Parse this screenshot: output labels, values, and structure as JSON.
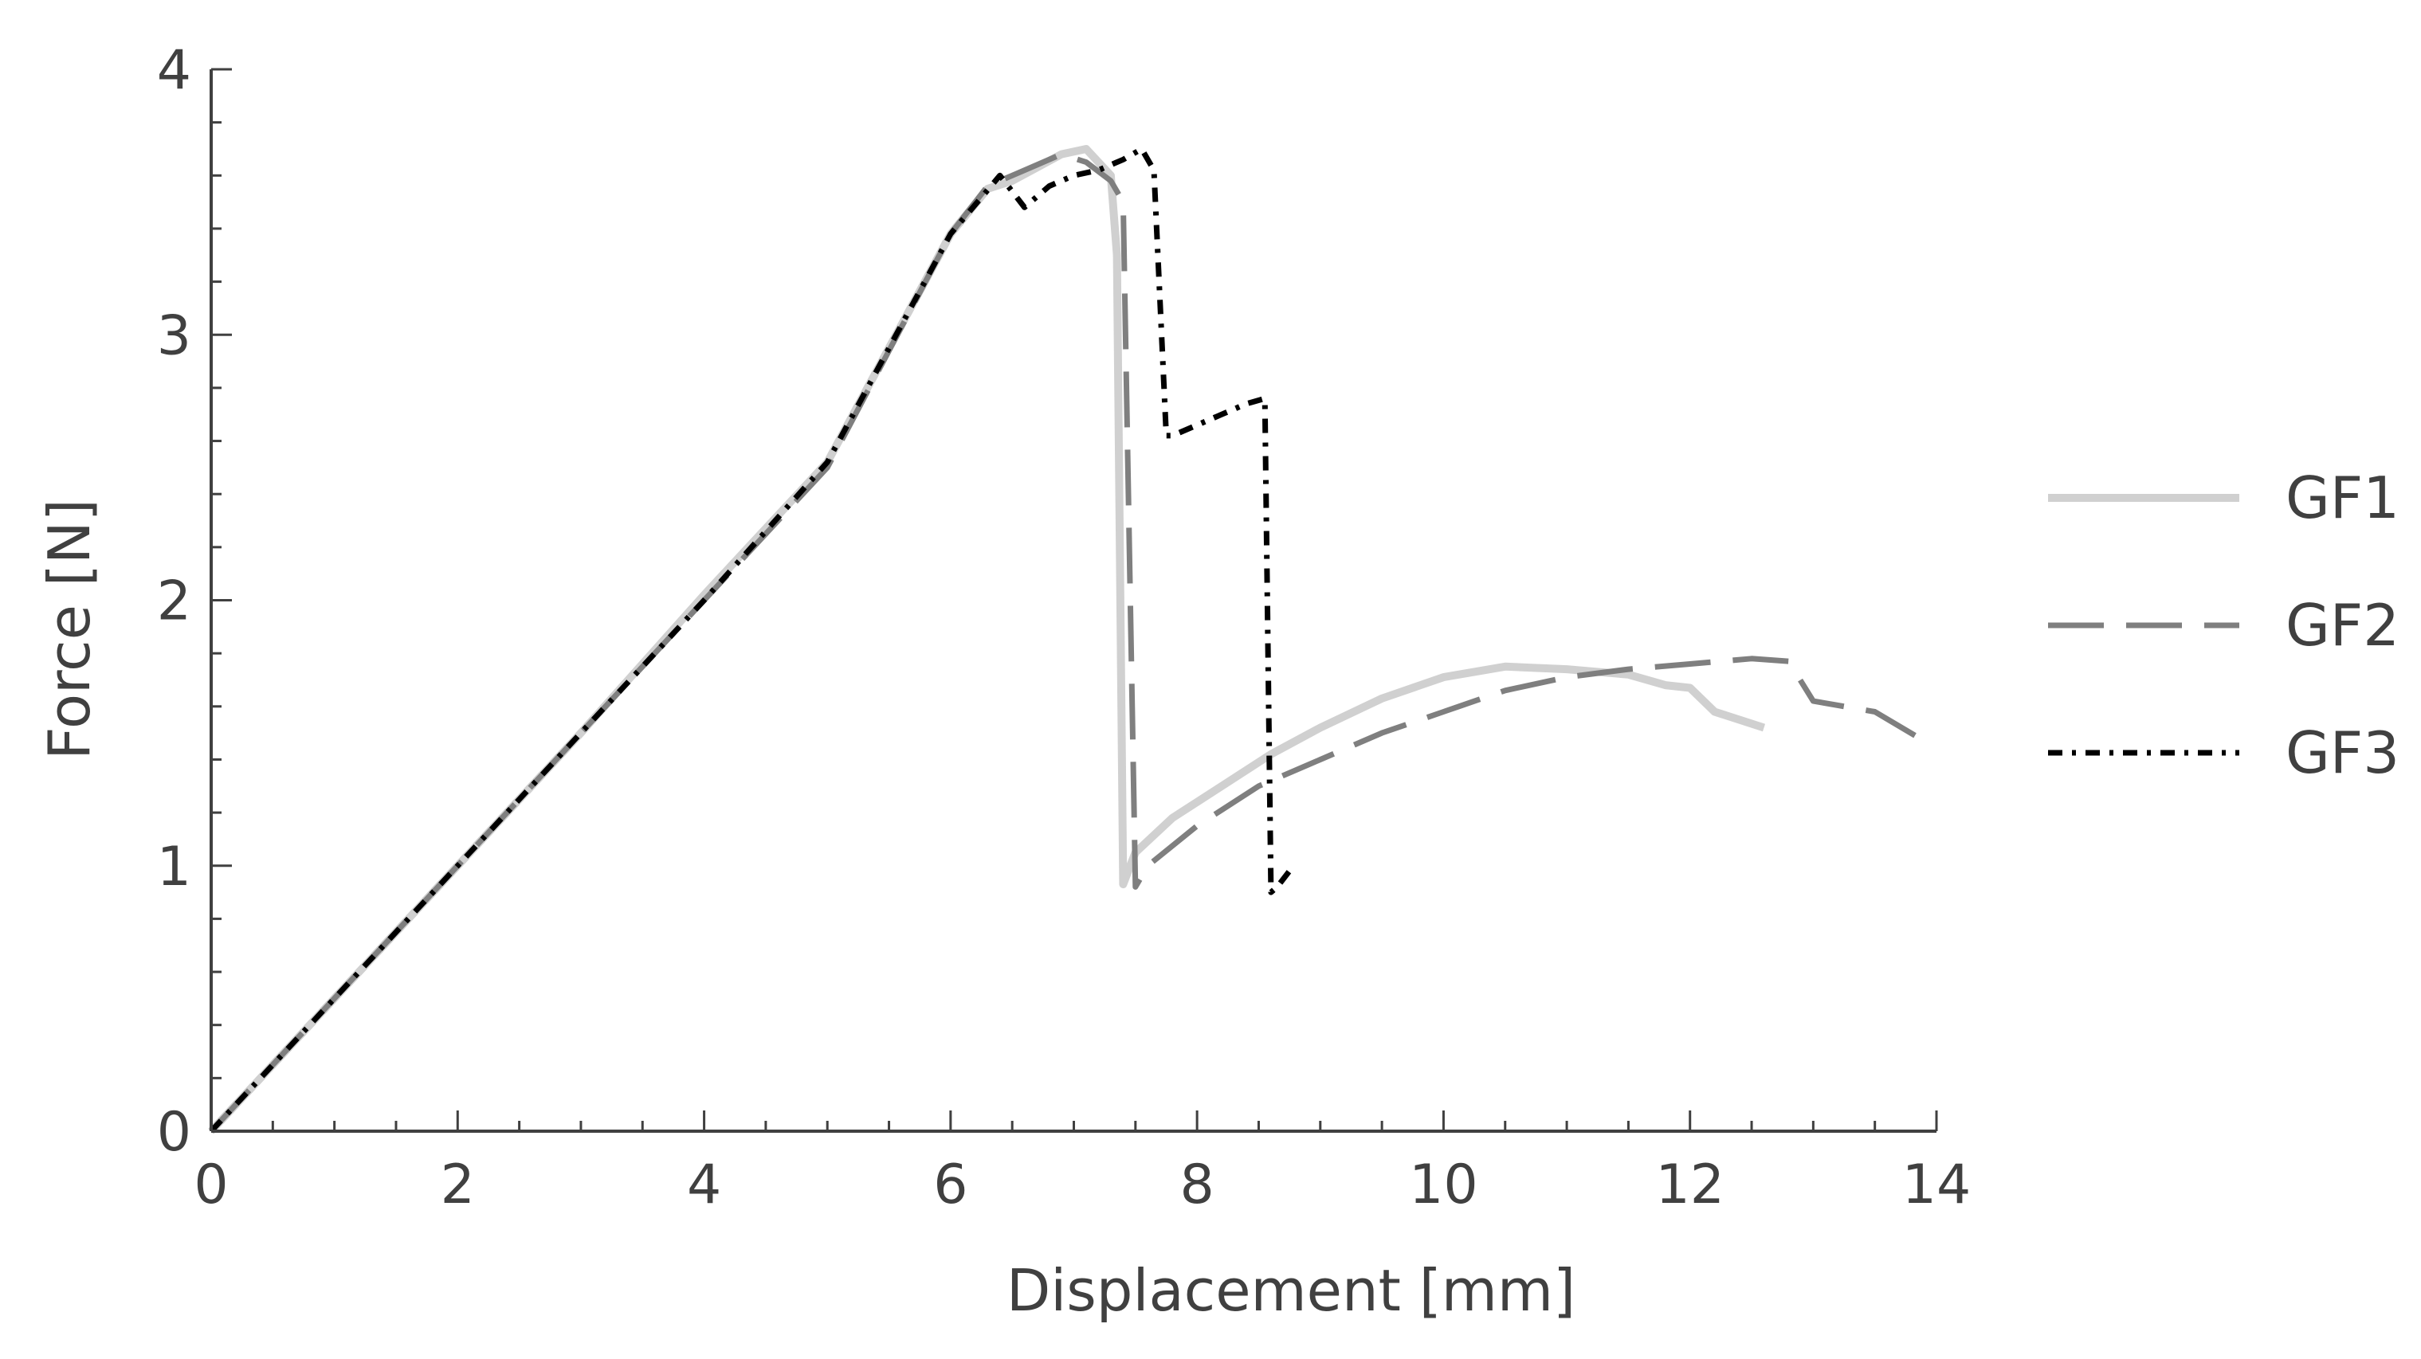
{
  "chart_data": {
    "type": "line",
    "xlabel": "Displacement [mm]",
    "ylabel": "Force [N]",
    "xlim": [
      0,
      14
    ],
    "ylim": [
      0,
      4
    ],
    "xticks": [
      0,
      2,
      4,
      6,
      8,
      10,
      12,
      14
    ],
    "yticks": [
      0,
      1,
      2,
      3,
      4
    ],
    "grid": false,
    "legend_position": "right",
    "series": [
      {
        "name": "GF1",
        "color": "#d0d0d0",
        "style": "solid",
        "x": [
          0,
          1,
          2,
          3,
          4,
          5,
          6,
          6.3,
          6.5,
          6.7,
          6.9,
          7.1,
          7.3,
          7.35,
          7.4,
          7.5,
          7.8,
          8.2,
          8.6,
          9,
          9.5,
          10,
          10.5,
          11,
          11.5,
          11.8,
          12.0,
          12.2,
          12.4,
          12.6
        ],
        "y": [
          0,
          0.5,
          1.0,
          1.5,
          2.02,
          2.52,
          3.38,
          3.55,
          3.58,
          3.63,
          3.68,
          3.7,
          3.6,
          3.3,
          0.93,
          1.05,
          1.18,
          1.3,
          1.42,
          1.52,
          1.63,
          1.71,
          1.75,
          1.74,
          1.72,
          1.68,
          1.67,
          1.58,
          1.55,
          1.52
        ]
      },
      {
        "name": "GF2",
        "color": "#7f7f7f",
        "style": "dashed",
        "x": [
          0,
          1,
          2,
          3,
          4,
          5,
          6,
          6.3,
          6.5,
          6.7,
          6.9,
          7.1,
          7.3,
          7.4,
          7.5,
          7.6,
          8,
          8.5,
          9,
          9.5,
          10,
          10.5,
          11,
          11.5,
          12,
          12.5,
          12.8,
          13,
          13.5,
          13.9
        ],
        "y": [
          0,
          0.5,
          1.0,
          1.5,
          2.0,
          2.5,
          3.38,
          3.56,
          3.6,
          3.64,
          3.68,
          3.65,
          3.58,
          3.5,
          0.92,
          1.0,
          1.15,
          1.3,
          1.4,
          1.5,
          1.58,
          1.66,
          1.71,
          1.74,
          1.76,
          1.78,
          1.77,
          1.62,
          1.58,
          1.47
        ]
      },
      {
        "name": "GF3",
        "color": "#000000",
        "style": "dashdot",
        "x": [
          0,
          1,
          2,
          3,
          4,
          5,
          6,
          6.4,
          6.6,
          6.8,
          7.0,
          7.2,
          7.4,
          7.55,
          7.65,
          7.75,
          7.8,
          8.0,
          8.2,
          8.4,
          8.55,
          8.6,
          8.65,
          8.75
        ],
        "y": [
          0,
          0.5,
          1.0,
          1.5,
          2.0,
          2.52,
          3.38,
          3.6,
          3.48,
          3.56,
          3.6,
          3.62,
          3.66,
          3.7,
          3.62,
          2.62,
          2.62,
          2.66,
          2.7,
          2.74,
          2.76,
          0.9,
          0.92,
          0.98
        ]
      }
    ]
  }
}
